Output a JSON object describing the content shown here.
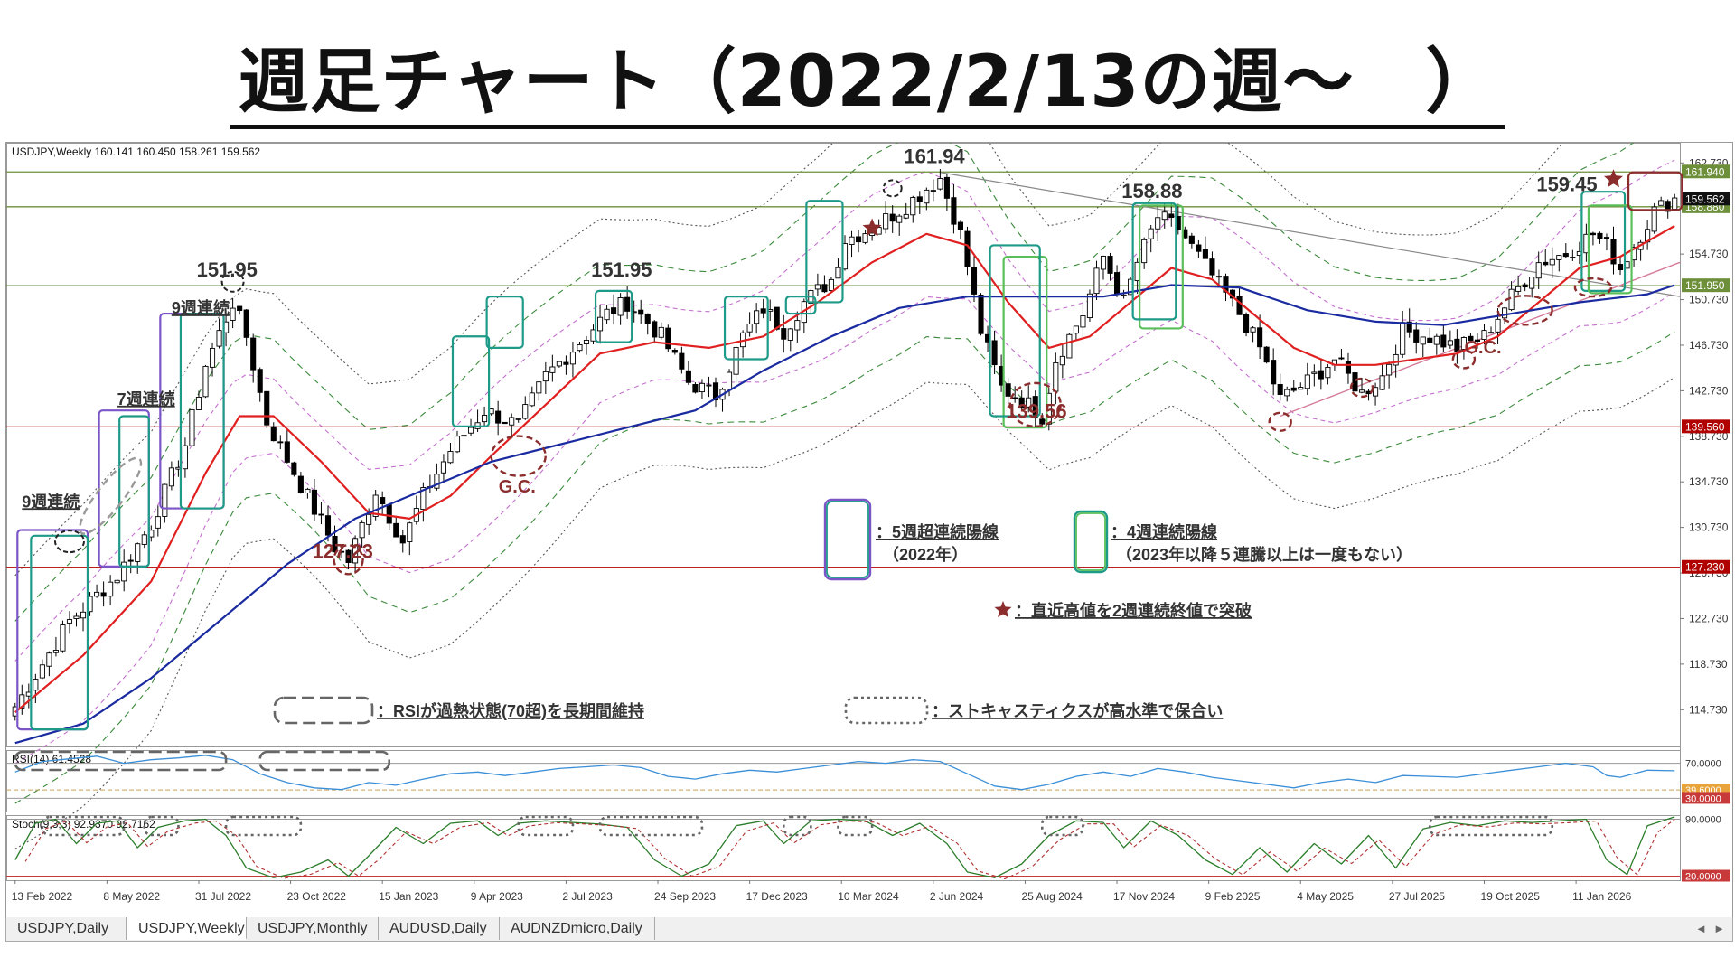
{
  "page_title": "週足チャート（2022/2/13の週～　）",
  "header": {
    "symbol_info": "USDJPY,Weekly  160.141 160.450 158.261 159.562",
    "rsi_label": "RSI(14) 61.4528",
    "stoch_label": "Stoch(9,3,3) 92.9370 92.7162"
  },
  "colors": {
    "bull": "#ffffff",
    "bear": "#000000",
    "ma_short": "#e02020",
    "ma_long": "#1a2aa0",
    "rsi_line": "#3a8fd8",
    "stoch_main": "#2b7d2b",
    "stoch_signal": "#b03030",
    "box_purple": "#7b55c8",
    "box_teal": "#1e9a88",
    "box_green": "#5abf5a",
    "annot_red": "#8b2d2d",
    "line_red": "#b00000",
    "line_green": "#6d8f3a"
  },
  "chart_data": [
    {
      "type": "candlestick",
      "name": "USDJPY,Weekly",
      "ylim": [
        111.5,
        164.5
      ],
      "y_ticks": [
        "162.730",
        "158.730",
        "154.730",
        "150.730",
        "146.730",
        "142.730",
        "138.730",
        "134.730",
        "130.730",
        "126.730",
        "122.730",
        "118.730",
        "114.730"
      ],
      "x_tick_labels": [
        "13 Feb 2022",
        "8 May 2022",
        "31 Jul 2022",
        "23 Oct 2022",
        "15 Jan 2023",
        "9 Apr 2023",
        "2 Jul 2023",
        "24 Sep 2023",
        "17 Dec 2023",
        "10 Mar 2024",
        "2 Jun 2024",
        "25 Aug 2024",
        "17 Nov 2024",
        "9 Feb 2025",
        "4 May 2025",
        "27 Jul 2025",
        "19 Oct 2025",
        "11 Jan 2026"
      ],
      "anchor_close_path": [
        [
          0,
          115.0
        ],
        [
          8,
          122.5
        ],
        [
          15,
          126.5
        ],
        [
          20,
          131.0
        ],
        [
          25,
          138.0
        ],
        [
          28,
          145.0
        ],
        [
          32,
          150.5
        ],
        [
          34,
          147.5
        ],
        [
          37,
          140.0
        ],
        [
          42,
          134.5
        ],
        [
          47,
          129.0
        ],
        [
          49,
          127.8
        ],
        [
          53,
          134.0
        ],
        [
          57,
          129.5
        ],
        [
          60,
          133.5
        ],
        [
          64,
          137.5
        ],
        [
          69,
          141.0
        ],
        [
          74,
          139.7
        ],
        [
          78,
          144.0
        ],
        [
          83,
          147.0
        ],
        [
          87,
          149.5
        ],
        [
          90,
          150.5
        ],
        [
          95,
          147.5
        ],
        [
          99,
          143.5
        ],
        [
          103,
          142.3
        ],
        [
          107,
          147.5
        ],
        [
          110,
          150.0
        ],
        [
          113,
          148.0
        ],
        [
          116,
          150.5
        ],
        [
          120,
          152.5
        ],
        [
          122,
          156.0
        ],
        [
          126,
          157.0
        ],
        [
          131,
          159.0
        ],
        [
          134,
          160.5
        ],
        [
          136,
          161.4
        ],
        [
          139,
          156.5
        ],
        [
          142,
          148.0
        ],
        [
          145,
          143.0
        ],
        [
          149,
          141.5
        ],
        [
          151,
          140.5
        ],
        [
          153,
          145.5
        ],
        [
          157,
          149.5
        ],
        [
          160,
          154.5
        ],
        [
          163,
          150.5
        ],
        [
          165,
          154.0
        ],
        [
          168,
          158.0
        ],
        [
          171,
          157.0
        ],
        [
          174,
          154.5
        ],
        [
          177,
          152.0
        ],
        [
          180,
          149.5
        ],
        [
          183,
          146.5
        ],
        [
          186,
          142.0
        ],
        [
          190,
          143.5
        ],
        [
          194,
          145.5
        ],
        [
          198,
          142.5
        ],
        [
          201,
          144.0
        ],
        [
          204,
          148.0
        ],
        [
          208,
          147.5
        ],
        [
          212,
          146.5
        ],
        [
          216,
          147.5
        ],
        [
          220,
          151.0
        ],
        [
          224,
          154.0
        ],
        [
          228,
          154.8
        ],
        [
          232,
          156.5
        ],
        [
          234,
          155.5
        ],
        [
          236,
          153.5
        ],
        [
          238,
          155.5
        ],
        [
          241,
          158.5
        ],
        [
          244,
          159.6
        ]
      ],
      "ma_short": [
        [
          0,
          114.5
        ],
        [
          10,
          119.5
        ],
        [
          20,
          126.0
        ],
        [
          28,
          135.5
        ],
        [
          33,
          140.5
        ],
        [
          38,
          140.5
        ],
        [
          45,
          136.5
        ],
        [
          52,
          132.0
        ],
        [
          58,
          131.5
        ],
        [
          64,
          133.5
        ],
        [
          70,
          137.0
        ],
        [
          78,
          141.5
        ],
        [
          86,
          146.0
        ],
        [
          94,
          147.0
        ],
        [
          102,
          146.5
        ],
        [
          110,
          147.5
        ],
        [
          118,
          150.5
        ],
        [
          126,
          154.0
        ],
        [
          134,
          156.5
        ],
        [
          140,
          155.5
        ],
        [
          146,
          150.5
        ],
        [
          152,
          146.5
        ],
        [
          158,
          147.5
        ],
        [
          164,
          150.5
        ],
        [
          170,
          153.5
        ],
        [
          176,
          152.5
        ],
        [
          182,
          149.5
        ],
        [
          188,
          146.5
        ],
        [
          194,
          145.0
        ],
        [
          200,
          145.0
        ],
        [
          206,
          145.5
        ],
        [
          212,
          146.0
        ],
        [
          218,
          147.5
        ],
        [
          224,
          150.5
        ],
        [
          230,
          153.5
        ],
        [
          236,
          154.5
        ],
        [
          244,
          157.2
        ]
      ],
      "ma_long": [
        [
          0,
          111.8
        ],
        [
          10,
          113.5
        ],
        [
          20,
          117.5
        ],
        [
          30,
          122.5
        ],
        [
          40,
          127.5
        ],
        [
          50,
          131.5
        ],
        [
          60,
          134.0
        ],
        [
          70,
          136.5
        ],
        [
          80,
          138.0
        ],
        [
          90,
          139.5
        ],
        [
          100,
          141.0
        ],
        [
          110,
          144.5
        ],
        [
          120,
          147.5
        ],
        [
          130,
          150.0
        ],
        [
          140,
          151.0
        ],
        [
          150,
          151.0
        ],
        [
          160,
          151.0
        ],
        [
          170,
          152.0
        ],
        [
          180,
          151.8
        ],
        [
          190,
          149.8
        ],
        [
          200,
          148.8
        ],
        [
          210,
          148.5
        ],
        [
          220,
          149.5
        ],
        [
          230,
          150.5
        ],
        [
          240,
          151.2
        ],
        [
          244,
          152.0
        ]
      ],
      "horizontal_levels": [
        {
          "value": 161.94,
          "label": "161.940",
          "color": "#6d8f3a"
        },
        {
          "value": 158.88,
          "label": "158.880",
          "color": "#6d8f3a"
        },
        {
          "value": 151.95,
          "label": "151.950",
          "color": "#6d8f3a"
        },
        {
          "value": 139.56,
          "label": "139.560",
          "color": "#b00000"
        },
        {
          "value": 127.23,
          "label": "127.230",
          "color": "#b00000"
        }
      ],
      "current_price_label": "159.562",
      "price_annotations": [
        {
          "text": "161.94",
          "x": 136,
          "y": 161.94,
          "color": "#333333"
        },
        {
          "text": "158.88",
          "x": 168,
          "y": 158.88,
          "color": "#333333"
        },
        {
          "text": "151.95",
          "x": 32,
          "y": 151.95,
          "color": "#333333"
        },
        {
          "text": "151.95",
          "x": 90,
          "y": 151.95,
          "color": "#333333"
        },
        {
          "text": "159.45",
          "x": 229,
          "y": 159.45,
          "color": "#333333"
        },
        {
          "text": "139.56",
          "x": 151,
          "y": 139.56,
          "color": "#8b2d2d"
        },
        {
          "text": "127.23",
          "x": 49,
          "y": 127.23,
          "color": "#8b2d2d"
        }
      ],
      "streak_labels": [
        {
          "text": "9週連続",
          "x": 1,
          "y": 132.5
        },
        {
          "text": "7週連続",
          "x": 15,
          "y": 141.5
        },
        {
          "text": "9週連続",
          "x": 23,
          "y": 149.5
        }
      ],
      "gc_labels": [
        {
          "text": "G.C.",
          "x": 74,
          "y": 133.8
        },
        {
          "text": "G.C.",
          "x": 216,
          "y": 146.0
        }
      ],
      "legend_texts": {
        "purple_box": "：5週超連続陽線",
        "purple_box_sub": "（2022年）",
        "teal_box": "：4週連続陽線",
        "teal_box_sub": "（2023年以降５連騰以上は一度もない）",
        "star": "：直近高値を2週連続終値で突破",
        "rsi_box": "：RSIが過熱状態(70超)を長期間維持",
        "stoch_box": "：ストキャスティクスが高水準で保合い"
      }
    },
    {
      "type": "line",
      "name": "RSI(14)",
      "ylim": [
        15,
        85
      ],
      "y_ticks": [
        "70.0000",
        "39.6000",
        "30.0000"
      ],
      "levels": [
        70,
        39.6,
        30
      ],
      "values": [
        [
          0,
          60
        ],
        [
          4,
          72
        ],
        [
          8,
          75
        ],
        [
          12,
          78
        ],
        [
          16,
          70
        ],
        [
          20,
          74
        ],
        [
          24,
          76
        ],
        [
          28,
          79
        ],
        [
          32,
          74
        ],
        [
          36,
          58
        ],
        [
          40,
          48
        ],
        [
          44,
          42
        ],
        [
          48,
          40
        ],
        [
          52,
          48
        ],
        [
          56,
          45
        ],
        [
          60,
          52
        ],
        [
          64,
          58
        ],
        [
          68,
          60
        ],
        [
          72,
          56
        ],
        [
          76,
          60
        ],
        [
          80,
          64
        ],
        [
          84,
          66
        ],
        [
          88,
          68
        ],
        [
          92,
          65
        ],
        [
          96,
          55
        ],
        [
          100,
          52
        ],
        [
          104,
          58
        ],
        [
          108,
          62
        ],
        [
          112,
          60
        ],
        [
          116,
          64
        ],
        [
          120,
          68
        ],
        [
          124,
          72
        ],
        [
          128,
          70
        ],
        [
          132,
          74
        ],
        [
          136,
          72
        ],
        [
          140,
          58
        ],
        [
          144,
          44
        ],
        [
          148,
          40
        ],
        [
          152,
          46
        ],
        [
          156,
          55
        ],
        [
          160,
          60
        ],
        [
          164,
          55
        ],
        [
          168,
          64
        ],
        [
          172,
          60
        ],
        [
          176,
          54
        ],
        [
          180,
          50
        ],
        [
          184,
          46
        ],
        [
          188,
          42
        ],
        [
          192,
          48
        ],
        [
          196,
          52
        ],
        [
          200,
          48
        ],
        [
          204,
          56
        ],
        [
          208,
          55
        ],
        [
          212,
          54
        ],
        [
          216,
          58
        ],
        [
          220,
          62
        ],
        [
          224,
          66
        ],
        [
          228,
          70
        ],
        [
          232,
          66
        ],
        [
          234,
          56
        ],
        [
          236,
          54
        ],
        [
          240,
          62
        ],
        [
          244,
          61.45
        ]
      ]
    },
    {
      "type": "line",
      "name": "Stoch(9,3,3)",
      "ylim": [
        15,
        95
      ],
      "y_ticks": [
        "90.0000",
        "20.0000"
      ],
      "levels": [
        90,
        20
      ],
      "main": [
        [
          0,
          40
        ],
        [
          3,
          85
        ],
        [
          6,
          90
        ],
        [
          9,
          60
        ],
        [
          12,
          85
        ],
        [
          15,
          88
        ],
        [
          18,
          55
        ],
        [
          21,
          80
        ],
        [
          25,
          88
        ],
        [
          28,
          90
        ],
        [
          31,
          70
        ],
        [
          34,
          30
        ],
        [
          38,
          18
        ],
        [
          42,
          25
        ],
        [
          46,
          40
        ],
        [
          49,
          20
        ],
        [
          52,
          45
        ],
        [
          56,
          80
        ],
        [
          60,
          60
        ],
        [
          64,
          85
        ],
        [
          68,
          88
        ],
        [
          71,
          70
        ],
        [
          74,
          85
        ],
        [
          78,
          88
        ],
        [
          82,
          86
        ],
        [
          86,
          84
        ],
        [
          90,
          80
        ],
        [
          94,
          40
        ],
        [
          98,
          20
        ],
        [
          102,
          35
        ],
        [
          106,
          82
        ],
        [
          110,
          88
        ],
        [
          113,
          60
        ],
        [
          117,
          88
        ],
        [
          121,
          90
        ],
        [
          125,
          88
        ],
        [
          129,
          70
        ],
        [
          133,
          85
        ],
        [
          137,
          60
        ],
        [
          140,
          25
        ],
        [
          144,
          18
        ],
        [
          148,
          35
        ],
        [
          152,
          70
        ],
        [
          156,
          88
        ],
        [
          160,
          86
        ],
        [
          163,
          55
        ],
        [
          167,
          88
        ],
        [
          171,
          70
        ],
        [
          175,
          40
        ],
        [
          179,
          22
        ],
        [
          183,
          55
        ],
        [
          187,
          25
        ],
        [
          191,
          60
        ],
        [
          195,
          35
        ],
        [
          199,
          70
        ],
        [
          203,
          30
        ],
        [
          207,
          78
        ],
        [
          211,
          86
        ],
        [
          215,
          82
        ],
        [
          219,
          88
        ],
        [
          223,
          86
        ],
        [
          227,
          88
        ],
        [
          231,
          90
        ],
        [
          234,
          40
        ],
        [
          237,
          22
        ],
        [
          240,
          82
        ],
        [
          244,
          92.9
        ]
      ]
    }
  ],
  "tabs": [
    {
      "label": "USDJPY,Daily",
      "active": false
    },
    {
      "label": "USDJPY,Weekly",
      "active": true
    },
    {
      "label": "USDJPY,Monthly",
      "active": false
    },
    {
      "label": "AUDUSD,Daily",
      "active": false
    },
    {
      "label": "AUDNZDmicro,Daily",
      "active": false
    }
  ]
}
